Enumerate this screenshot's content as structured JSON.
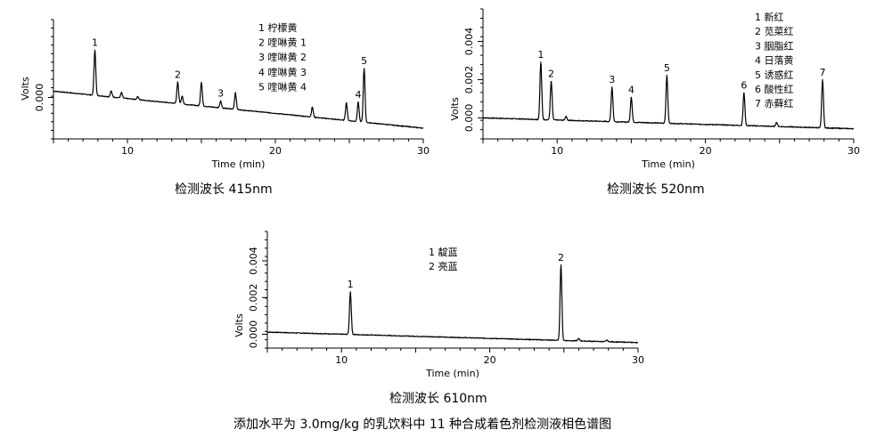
{
  "figure_caption": "添加水平为 3.0mg/kg 的乳饮料中 11 种合成着色剂检测液相色谱图",
  "chart_data": [
    {
      "type": "line",
      "id": "panel-415",
      "caption": "检测波长 415nm",
      "xlabel": "Time (min)",
      "ylabel": "Volts",
      "xlim": [
        5,
        30
      ],
      "xticks": [
        10,
        20,
        30
      ],
      "ylim": [
        -0.00085,
        0.0016
      ],
      "yticks": [
        0.0
      ],
      "ytick_labels": [
        "0.000"
      ],
      "grid": false,
      "legend_position": "top-center",
      "legend": [
        "1 柠檬黄",
        "2 喹啉黄 1",
        "3 喹啉黄 2",
        "4 喹啉黄 3",
        "5 喹啉黄 4"
      ],
      "baseline": {
        "x": [
          5,
          30
        ],
        "y": [
          0.00013,
          -0.00063
        ]
      },
      "peaks": [
        {
          "x": 7.8,
          "h": 0.00092,
          "label": "1"
        },
        {
          "x": 8.9,
          "h": 0.00012
        },
        {
          "x": 9.6,
          "h": 0.00011
        },
        {
          "x": 10.7,
          "h": 6e-05
        },
        {
          "x": 13.4,
          "h": 0.00044,
          "label": "2"
        },
        {
          "x": 13.7,
          "h": 0.00016
        },
        {
          "x": 15.0,
          "h": 0.00048
        },
        {
          "x": 16.3,
          "h": 0.00014,
          "label": "3"
        },
        {
          "x": 17.3,
          "h": 0.00034
        },
        {
          "x": 22.5,
          "h": 0.0002
        },
        {
          "x": 24.8,
          "h": 0.00036
        },
        {
          "x": 25.6,
          "h": 0.0004,
          "label": "4"
        },
        {
          "x": 26.0,
          "h": 0.0011,
          "label": "5"
        }
      ]
    },
    {
      "type": "line",
      "id": "panel-520",
      "caption": "检测波长 520nm",
      "xlabel": "Time (min)",
      "ylabel": "Volts",
      "xlim": [
        5,
        30
      ],
      "xticks": [
        10,
        20,
        30
      ],
      "ylim": [
        -0.0011,
        0.0057
      ],
      "yticks": [
        0.0,
        0.002,
        0.004
      ],
      "ytick_labels": [
        "0.000",
        "0.002",
        "0.004"
      ],
      "grid": false,
      "legend_position": "top-right",
      "legend": [
        "1 新红",
        "2 苋菜红",
        "3 胭脂红",
        "4 日落黄",
        "5 诱惑红",
        "6 酸性红",
        "7 赤藓红"
      ],
      "baseline": {
        "x": [
          5,
          30
        ],
        "y": [
          0.0,
          -0.00057
        ]
      },
      "peaks": [
        {
          "x": 8.9,
          "h": 0.003,
          "label": "1"
        },
        {
          "x": 9.6,
          "h": 0.002,
          "label": "2"
        },
        {
          "x": 10.6,
          "h": 0.0002
        },
        {
          "x": 13.7,
          "h": 0.0018,
          "label": "3"
        },
        {
          "x": 15.0,
          "h": 0.0013,
          "label": "4"
        },
        {
          "x": 17.4,
          "h": 0.0025,
          "label": "5"
        },
        {
          "x": 22.6,
          "h": 0.0017,
          "label": "6"
        },
        {
          "x": 24.8,
          "h": 0.0002
        },
        {
          "x": 27.9,
          "h": 0.0025,
          "label": "7"
        }
      ]
    },
    {
      "type": "line",
      "id": "panel-610",
      "caption": "检测波长 610nm",
      "xlabel": "Time (min)",
      "ylabel": "Volts",
      "xlim": [
        5,
        30
      ],
      "xticks": [
        10,
        20,
        30
      ],
      "ylim": [
        -0.00075,
        0.0056
      ],
      "yticks": [
        0.0,
        0.002,
        0.004
      ],
      "ytick_labels": [
        "0.000",
        "0.002",
        "0.004"
      ],
      "grid": false,
      "legend_position": "top-center",
      "legend": [
        "1 靛蓝",
        "2 亮蓝"
      ],
      "baseline": {
        "x": [
          5,
          30
        ],
        "y": [
          0.00012,
          -0.00045
        ]
      },
      "peaks": [
        {
          "x": 10.6,
          "h": 0.0023,
          "label": "1"
        },
        {
          "x": 24.8,
          "h": 0.0041,
          "label": "2"
        },
        {
          "x": 26.0,
          "h": 0.00012
        },
        {
          "x": 27.9,
          "h": 8e-05
        }
      ]
    }
  ]
}
